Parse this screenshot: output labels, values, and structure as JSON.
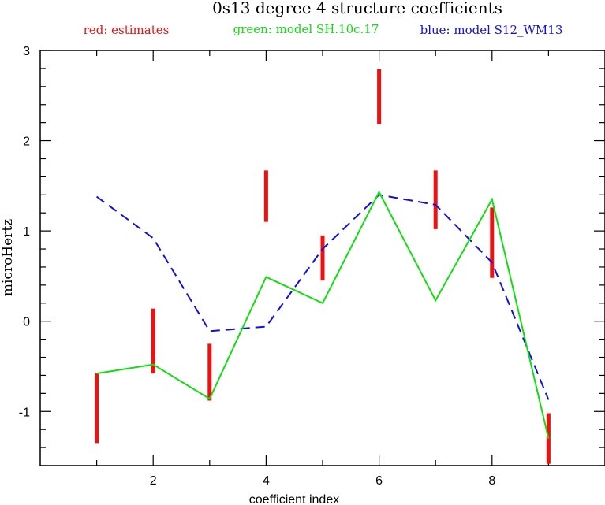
{
  "chart_data": {
    "type": "line",
    "title": "0s13 degree 4 structure coefficients",
    "legend": [
      {
        "text": "red: estimates",
        "color": "#ee1111"
      },
      {
        "text": "green: model SH.10c.17",
        "color": "#11dd11"
      },
      {
        "text": "blue: model S12_WM13",
        "color": "#1111dd"
      }
    ],
    "xlabel": "coefficient index",
    "ylabel": "microHertz",
    "xlim": [
      0,
      10
    ],
    "ylim": [
      -1.6,
      3
    ],
    "xticks": [
      2,
      4,
      6,
      8
    ],
    "xtick_labels": [
      "2",
      "4",
      "6",
      "8"
    ],
    "yticks": [
      -1,
      0,
      1,
      2,
      3
    ],
    "ytick_labels": [
      "-1",
      "0",
      "1",
      "2",
      "3"
    ],
    "x": [
      1,
      2,
      3,
      4,
      5,
      6,
      7,
      8,
      9
    ],
    "estimates": {
      "name": "red: estimates",
      "color": "#ee1111",
      "low": [
        -1.35,
        -0.58,
        -0.88,
        1.1,
        0.45,
        2.18,
        1.02,
        0.48,
        -1.58
      ],
      "high": [
        -0.57,
        0.14,
        -0.25,
        1.67,
        0.95,
        2.79,
        1.67,
        1.26,
        -1.02
      ]
    },
    "series": [
      {
        "name": "green: model SH.10c.17",
        "color": "#11dd11",
        "style": "solid",
        "values": [
          -0.58,
          -0.48,
          -0.86,
          0.49,
          0.2,
          1.43,
          0.23,
          1.35,
          -1.3
        ]
      },
      {
        "name": "blue: model S12_WM13",
        "color": "#1111dd",
        "style": "dashed",
        "values": [
          1.38,
          0.92,
          -0.11,
          -0.06,
          0.8,
          1.4,
          1.29,
          0.65,
          -0.87
        ]
      }
    ]
  }
}
